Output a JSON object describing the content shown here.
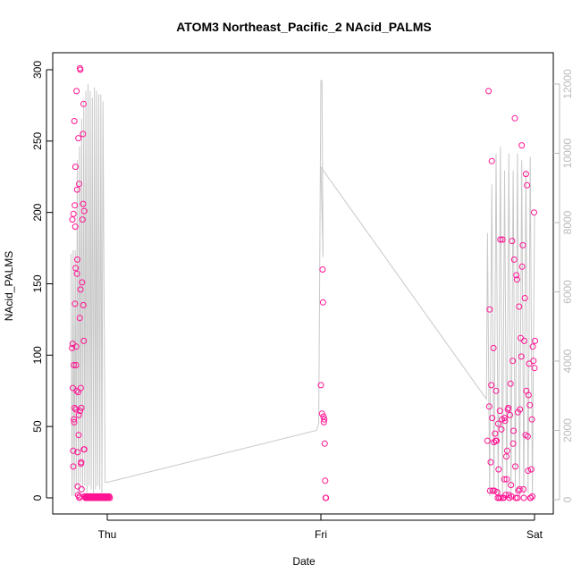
{
  "chart_data": {
    "type": "scatter",
    "title": "ATOM3 Northeast_Pacific_2 NAcid_PALMS",
    "xlabel": "Date",
    "ylabel": "NAcid_PALMS",
    "x_ticks": [
      "Thu",
      "Fri",
      "Sat"
    ],
    "ylim": [
      0,
      300
    ],
    "y_ticks": [
      0,
      50,
      100,
      150,
      200,
      250,
      300
    ],
    "y2lim": [
      0,
      12000
    ],
    "y2_ticks": [
      0,
      2000,
      4000,
      6000,
      8000,
      10000,
      12000
    ],
    "grid": false,
    "colors": {
      "points": "#ff1493",
      "secondary_line": "#c8c8c8",
      "secondary_axis": "#bbbbbb",
      "frame": "#000000"
    },
    "series": [
      {
        "type": "scatter",
        "axis": "left",
        "x_day_fraction": [
          -0.165,
          -0.163,
          -0.162,
          -0.161,
          -0.16,
          -0.159,
          -0.158,
          -0.157,
          -0.156,
          -0.155,
          -0.154,
          -0.153,
          -0.152,
          -0.151,
          -0.15,
          -0.149,
          -0.148,
          -0.147,
          -0.146,
          -0.145,
          -0.144,
          -0.143,
          -0.142,
          -0.141,
          -0.14,
          -0.139,
          -0.138,
          -0.137,
          -0.136,
          -0.135,
          -0.134,
          -0.133,
          -0.132,
          -0.131,
          -0.13,
          -0.129,
          -0.128,
          -0.127,
          -0.126,
          -0.125,
          -0.124,
          -0.123,
          -0.122,
          -0.121,
          -0.12,
          -0.118,
          -0.116,
          -0.114,
          -0.113,
          -0.112,
          -0.111,
          -0.11,
          -0.109,
          -0.108,
          -0.107,
          -0.106,
          -0.104,
          -0.102,
          -0.1,
          -0.098,
          -0.096,
          -0.094,
          -0.092,
          -0.09,
          -0.088,
          -0.086,
          -0.084,
          -0.082,
          -0.08,
          -0.078,
          -0.076,
          -0.074,
          -0.072,
          -0.07,
          -0.068,
          -0.066,
          -0.064,
          -0.062,
          -0.06,
          -0.058,
          -0.056,
          -0.054,
          -0.052,
          -0.05,
          -0.048,
          -0.046,
          -0.044,
          -0.042,
          -0.04,
          -0.038,
          -0.036,
          -0.034,
          -0.032,
          -0.03,
          -0.028,
          -0.026,
          -0.024,
          -0.022,
          -0.02,
          -0.018,
          -0.016,
          -0.014,
          -0.012,
          -0.01,
          -0.008,
          -0.006,
          -0.004,
          -0.002,
          0.0,
          0.003,
          0.006,
          0.009,
          0.012,
          1.0,
          1.005,
          1.008,
          1.01,
          1.012,
          1.014,
          1.016,
          1.018,
          1.02,
          1.022,
          1.024,
          1.78,
          1.79,
          1.8,
          1.81,
          1.82,
          1.83,
          1.84,
          1.85,
          1.86,
          1.87,
          1.88,
          1.89,
          1.9,
          1.91,
          1.92,
          1.93,
          1.94,
          1.95,
          1.96,
          1.97,
          1.98,
          1.99,
          2.0,
          1.785,
          1.795,
          1.805,
          1.815,
          1.825,
          1.835,
          1.845,
          1.855,
          1.865,
          1.875,
          1.885,
          1.895,
          1.905,
          1.915,
          1.925,
          1.935,
          1.945,
          1.955,
          1.965,
          1.975,
          1.985,
          1.995,
          1.792,
          1.802,
          1.812,
          1.822,
          1.832,
          1.842,
          1.852,
          1.862,
          1.872,
          1.882,
          1.892,
          1.902,
          1.912,
          1.922,
          1.932,
          1.942,
          1.952,
          1.962,
          1.972,
          1.982,
          1.992,
          2.002,
          1.788,
          1.798,
          1.808,
          1.818,
          1.828,
          1.838,
          1.848,
          1.858,
          1.868,
          1.878,
          1.888,
          1.898,
          1.908,
          1.918,
          1.928,
          1.938,
          1.948,
          1.958,
          1.968,
          1.978,
          1.988,
          1.998
        ],
        "y": [
          105,
          195,
          108,
          77,
          33,
          22,
          199,
          93,
          55,
          53,
          264,
          63,
          205,
          136,
          190,
          232,
          161,
          62,
          93,
          106,
          285,
          75,
          157,
          216,
          167,
          32,
          8,
          2,
          74,
          252,
          44,
          58,
          220,
          0,
          1,
          126,
          301,
          61,
          300,
          146,
          77,
          24,
          25,
          63,
          6,
          151,
          195,
          255,
          206,
          135,
          276,
          110,
          34,
          201,
          34,
          1,
          1,
          0,
          0,
          1,
          0,
          1,
          0,
          1,
          0,
          1,
          0,
          1,
          0,
          1,
          0,
          1,
          0,
          1,
          0,
          1,
          0,
          1,
          0,
          1,
          0,
          1,
          0,
          1,
          0,
          1,
          0,
          1,
          0,
          1,
          0,
          1,
          0,
          1,
          0,
          1,
          0,
          1,
          0,
          1,
          0,
          1,
          0,
          1,
          0,
          1,
          0,
          1,
          0,
          1,
          0,
          1,
          0,
          79,
          59,
          160,
          137,
          57,
          53,
          55,
          38,
          12,
          0,
          0,
          40,
          132,
          236,
          39,
          75,
          52,
          181,
          181,
          56,
          13,
          2,
          9,
          38,
          22,
          0,
          6,
          247,
          0,
          227,
          19,
          0,
          1,
          91,
          285,
          25,
          5,
          45,
          4,
          0,
          48,
          0,
          2,
          62,
          58,
          180,
          167,
          156,
          5,
          112,
          177,
          140,
          219,
          94,
          20,
          96,
          5,
          56,
          5,
          40,
          20,
          0,
          0,
          54,
          33,
          0,
          1,
          47,
          0,
          60,
          62,
          162,
          110,
          75,
          72,
          0,
          106,
          110,
          64,
          79,
          105,
          40,
          0,
          61,
          55,
          13,
          29,
          63,
          80,
          96,
          266,
          153,
          134,
          99,
          6,
          44,
          43,
          65,
          55,
          200
        ]
      },
      {
        "type": "line",
        "axis": "right",
        "x_day_fraction": [
          -0.17,
          -0.165,
          -0.16,
          -0.155,
          -0.15,
          -0.145,
          -0.14,
          -0.135,
          -0.13,
          -0.125,
          -0.12,
          -0.115,
          -0.11,
          -0.105,
          -0.1,
          -0.095,
          -0.09,
          -0.085,
          -0.08,
          -0.075,
          -0.07,
          -0.065,
          -0.06,
          -0.055,
          -0.05,
          -0.045,
          -0.04,
          -0.035,
          -0.03,
          -0.025,
          -0.02,
          -0.01,
          0.0,
          0.98,
          0.99,
          1.0,
          1.005,
          1.01,
          1.0,
          1.0,
          1.0,
          1.775,
          1.78,
          1.79,
          1.8,
          1.81,
          1.82,
          1.83,
          1.84,
          1.85,
          1.86,
          1.87,
          1.88,
          1.89,
          1.9,
          1.91,
          1.92,
          1.93,
          1.94,
          1.95,
          1.96,
          1.97,
          1.98,
          1.99,
          2.0,
          2.0
        ],
        "y": [
          7100,
          100,
          7200,
          100,
          7200,
          400,
          9800,
          200,
          10200,
          500,
          11000,
          300,
          11500,
          400,
          11800,
          200,
          12000,
          400,
          11800,
          300,
          11600,
          200,
          11900,
          300,
          11800,
          400,
          11700,
          300,
          11700,
          200,
          11500,
          500,
          500,
          2000,
          2200,
          12100,
          12100,
          7000,
          9600,
          9600,
          9600,
          2900,
          7700,
          100,
          9100,
          200,
          10000,
          100,
          10200,
          100,
          9500,
          200,
          10000,
          100,
          9500,
          200,
          10000,
          100,
          9800,
          100,
          9500,
          200,
          9900,
          100,
          8200,
          8200
        ]
      }
    ]
  }
}
